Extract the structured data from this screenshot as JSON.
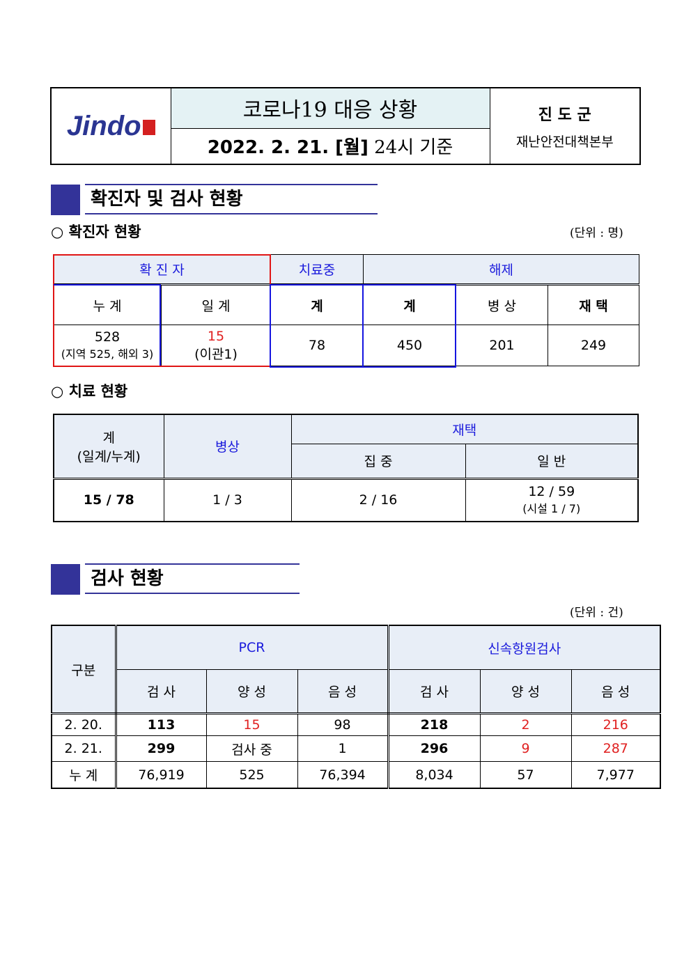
{
  "header": {
    "logo_text": "Jindo",
    "title": "코로나19 대응 상황",
    "date_bold": "2022. 2. 21. [월]",
    "date_rest": " 24시 기준",
    "org_name": "진 도 군",
    "org_dept": "재난안전대책본부"
  },
  "section1": {
    "title": "확진자 및 검사 현황",
    "sub1": "○ 확진자 현황",
    "unit1": "(단위 : 명)",
    "sub2": "○ 치료 현황"
  },
  "confirmed": {
    "h_confirmed": "확 진 자",
    "h_treating": "치료중",
    "h_released": "해제",
    "c_total": "누 계",
    "c_daily": "일 계",
    "c_treat_sum": "계",
    "c_rel_sum": "계",
    "c_hospital": "병 상",
    "c_home": "재 택",
    "total": "528",
    "total_detail": "(지역 525, 해외 3)",
    "daily": "15",
    "daily_detail": "(이관1)",
    "treating": "78",
    "released": "450",
    "hospital": "201",
    "home": "249"
  },
  "treatment": {
    "h_sum": "계",
    "h_sum2": "(일계/누계)",
    "h_hospital": "병상",
    "h_home": "재택",
    "h_intensive": "집 중",
    "h_general": "일 반",
    "sum": "15 / 78",
    "hospital": "1 / 3",
    "intensive": "2 / 16",
    "general": "12 / 59",
    "general_detail": "(시설 1 / 7)"
  },
  "section2": {
    "title": "검사 현황",
    "unit": "(단위 : 건)"
  },
  "tests": {
    "h_category": "구분",
    "h_pcr": "PCR",
    "h_rapid": "신속항원검사",
    "cols": [
      "검 사",
      "양 성",
      "음 성",
      "검 사",
      "양 성",
      "음 성"
    ],
    "rows": [
      {
        "label": "2. 20.",
        "values": [
          "113",
          "15",
          "98",
          "218",
          "2",
          "216"
        ]
      },
      {
        "label": "2. 21.",
        "values": [
          "299",
          "검사 중",
          "1",
          "296",
          "9",
          "287"
        ]
      },
      {
        "label": "누 계",
        "values": [
          "76,919",
          "525",
          "76,394",
          "8,034",
          "57",
          "7,977"
        ]
      }
    ]
  },
  "colors": {
    "accent": "#333399",
    "blue": "#1a1adc",
    "red": "#e02020",
    "header_bg": "#e8eef7"
  }
}
